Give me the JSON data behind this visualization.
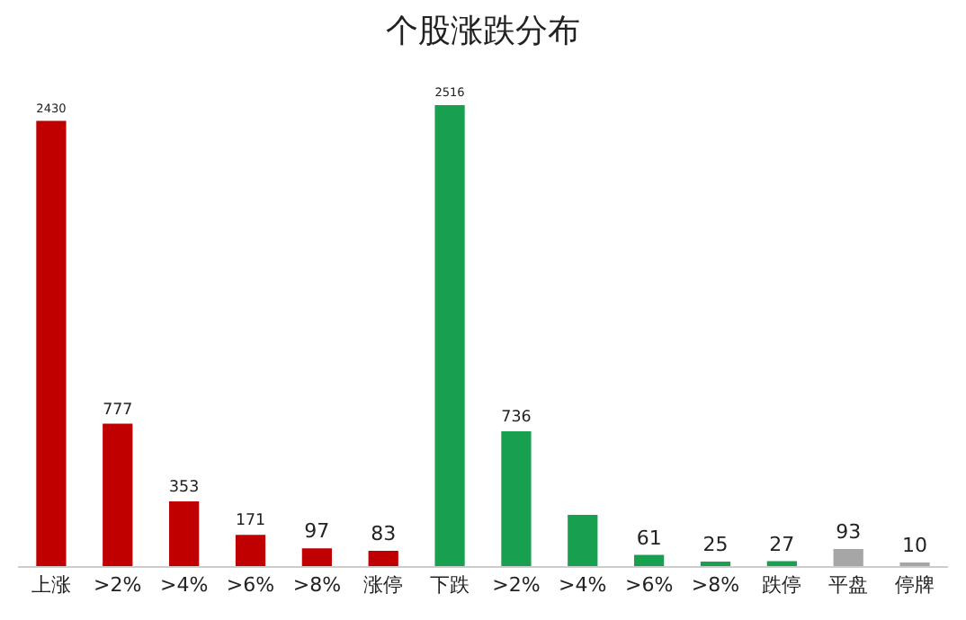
{
  "chart_data": {
    "type": "bar",
    "title": "个股涨跌分布",
    "categories": [
      "上涨",
      ">2%",
      ">4%",
      ">6%",
      ">8%",
      "涨停",
      "下跌",
      ">2%",
      ">4%",
      ">6%",
      ">8%",
      "跌停",
      "平盘",
      "停牌"
    ],
    "values": [
      2430,
      777,
      353,
      171,
      97,
      83,
      2516,
      736,
      279,
      61,
      25,
      27,
      93,
      10
    ],
    "value_labels": [
      "2430",
      "777",
      "353",
      "171",
      "97",
      "83",
      "2516",
      "736",
      null,
      "61",
      "25",
      "27",
      "93",
      "10"
    ],
    "colors": [
      "#c00000",
      "#c00000",
      "#c00000",
      "#c00000",
      "#c00000",
      "#c00000",
      "#18a050",
      "#18a050",
      "#18a050",
      "#18a050",
      "#18a050",
      "#18a050",
      "#a6a6a6",
      "#a6a6a6"
    ],
    "grid": false,
    "legend": false
  }
}
